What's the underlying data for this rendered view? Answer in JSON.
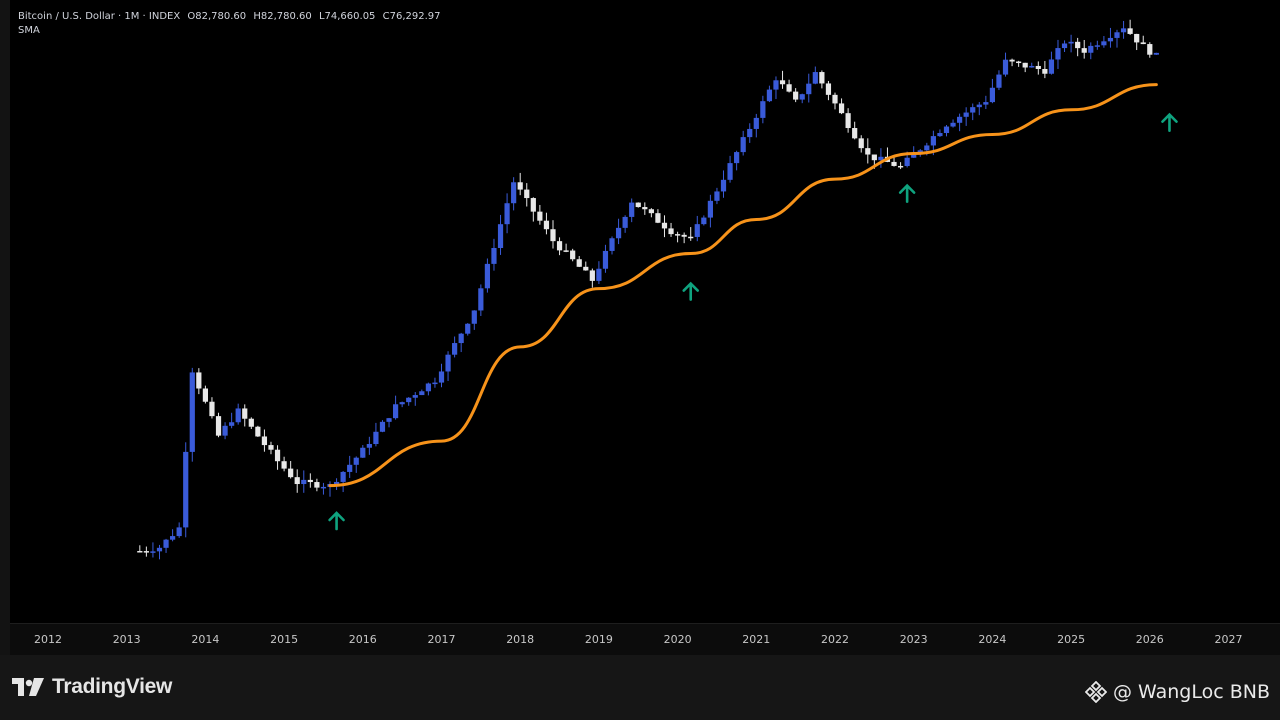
{
  "legend": {
    "symbol": "Bitcoin / U.S. Dollar · 1M · INDEX",
    "open": "O82,780.60",
    "high": "H82,780.60",
    "low": "L74,660.05",
    "close": "C76,292.97",
    "indicator": "SMA"
  },
  "footer": {
    "brand": "TradingView",
    "watermark": "@ WangLoc BNB",
    "brand_icon": "tradingview-logo",
    "watermark_icon": "binance-diamond-icon"
  },
  "colors": {
    "background": "#000000",
    "up_candle": "#3a5bd9",
    "down_candle": "#e8e8e8",
    "sma_line": "#f7931a",
    "arrow": "#0fa37f"
  },
  "chart_data": {
    "type": "candlestick",
    "x_axis_labels": [
      "2012",
      "2013",
      "2014",
      "2015",
      "2016",
      "2017",
      "2018",
      "2019",
      "2020",
      "2021",
      "2022",
      "2023",
      "2024",
      "2025",
      "2026",
      "2027"
    ],
    "y_scale": "log",
    "grid": false,
    "series": [
      {
        "name": "Bitcoin / U.S. Dollar",
        "kind": "candles",
        "approx_monthly_close": [
          {
            "t": "2013-03",
            "v": 95
          },
          {
            "t": "2013-06",
            "v": 100
          },
          {
            "t": "2013-09",
            "v": 130
          },
          {
            "t": "2013-11",
            "v": 1100
          },
          {
            "t": "2014-03",
            "v": 450
          },
          {
            "t": "2014-06",
            "v": 630
          },
          {
            "t": "2014-12",
            "v": 320
          },
          {
            "t": "2015-03",
            "v": 240
          },
          {
            "t": "2015-08",
            "v": 230
          },
          {
            "t": "2016-01",
            "v": 370
          },
          {
            "t": "2016-06",
            "v": 670
          },
          {
            "t": "2016-12",
            "v": 960
          },
          {
            "t": "2017-06",
            "v": 2500
          },
          {
            "t": "2017-12",
            "v": 14000
          },
          {
            "t": "2018-06",
            "v": 6300
          },
          {
            "t": "2018-12",
            "v": 3700
          },
          {
            "t": "2019-06",
            "v": 10800
          },
          {
            "t": "2019-12",
            "v": 7200
          },
          {
            "t": "2020-03",
            "v": 6400
          },
          {
            "t": "2020-12",
            "v": 29000
          },
          {
            "t": "2021-04",
            "v": 57000
          },
          {
            "t": "2021-07",
            "v": 41000
          },
          {
            "t": "2021-10",
            "v": 61000
          },
          {
            "t": "2022-06",
            "v": 19900
          },
          {
            "t": "2022-11",
            "v": 17100
          },
          {
            "t": "2023-06",
            "v": 30500
          },
          {
            "t": "2023-12",
            "v": 42000
          },
          {
            "t": "2024-03",
            "v": 71000
          },
          {
            "t": "2024-09",
            "v": 63000
          },
          {
            "t": "2024-12",
            "v": 93000
          },
          {
            "t": "2025-03",
            "v": 82500
          },
          {
            "t": "2025-09",
            "v": 114000
          },
          {
            "t": "2025-12",
            "v": 87000
          },
          {
            "t": "2026-02",
            "v": 76293
          }
        ]
      },
      {
        "name": "SMA",
        "kind": "line",
        "approx_values": [
          {
            "t": "2015-08",
            "v": 230
          },
          {
            "t": "2017-01",
            "v": 420
          },
          {
            "t": "2018-01",
            "v": 1500
          },
          {
            "t": "2019-01",
            "v": 3300
          },
          {
            "t": "2020-03",
            "v": 5300
          },
          {
            "t": "2021-01",
            "v": 8400
          },
          {
            "t": "2022-01",
            "v": 14500
          },
          {
            "t": "2023-01",
            "v": 20500
          },
          {
            "t": "2024-01",
            "v": 26500
          },
          {
            "t": "2025-01",
            "v": 37000
          },
          {
            "t": "2026-02",
            "v": 52000
          }
        ]
      }
    ],
    "annotations": [
      {
        "type": "up-arrow",
        "t": "2015-09"
      },
      {
        "type": "up-arrow",
        "t": "2020-03"
      },
      {
        "type": "up-arrow",
        "t": "2022-12"
      },
      {
        "type": "up-arrow",
        "t": "2026-04"
      }
    ]
  }
}
